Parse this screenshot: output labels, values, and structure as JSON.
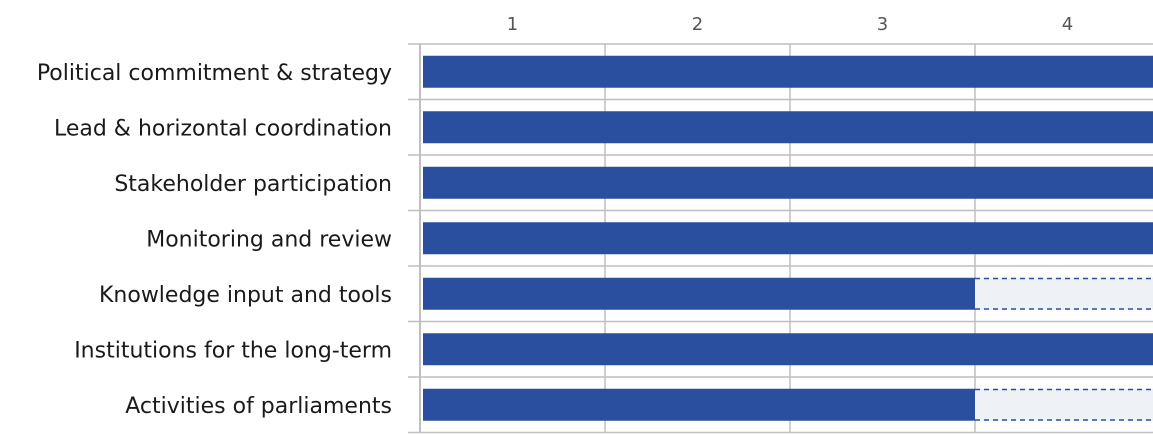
{
  "chart_data": {
    "type": "bar",
    "orientation": "horizontal",
    "categories": [
      "Political commitment & strategy",
      "Lead & horizontal coordination",
      "Stakeholder participation",
      "Monitoring and review",
      "Knowledge input and tools",
      "Institutions for the long-term",
      "Activities of parliaments"
    ],
    "values": [
      4,
      4,
      4,
      4,
      3,
      4,
      3
    ],
    "max_value": 4,
    "x_ticks": [
      "1",
      "2",
      "3",
      "4"
    ],
    "xlim": [
      0,
      4
    ],
    "grid": true,
    "gap_style": "dashed placeholder to maximum",
    "colors": {
      "bar": "#2a4f9e",
      "gap_fill": "#eef1f6",
      "gap_border": "#2a4f9e",
      "grid": "#bfbfbf"
    }
  }
}
